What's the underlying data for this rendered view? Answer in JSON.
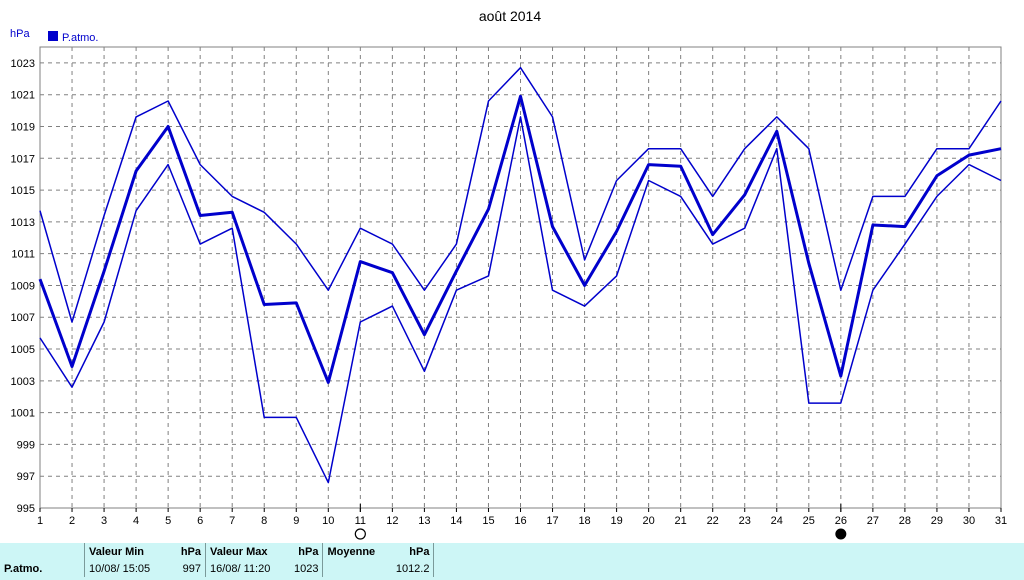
{
  "chart_data": {
    "type": "line",
    "title": "août 2014",
    "ylabel": "hPa",
    "xlabel": "",
    "x": [
      1,
      2,
      3,
      4,
      5,
      6,
      7,
      8,
      9,
      10,
      11,
      12,
      13,
      14,
      15,
      16,
      17,
      18,
      19,
      20,
      21,
      22,
      23,
      24,
      25,
      26,
      27,
      28,
      29,
      30,
      31
    ],
    "ylim": [
      995,
      1024
    ],
    "yticks": [
      995,
      997,
      999,
      1001,
      1003,
      1005,
      1007,
      1009,
      1011,
      1013,
      1015,
      1017,
      1019,
      1021,
      1023
    ],
    "grid": true,
    "legend": "top-left",
    "series": [
      {
        "name": "P.atmo.",
        "role": "mean",
        "values": [
          1009.4,
          1003.9,
          1009.9,
          1016.2,
          1019.0,
          1013.4,
          1013.6,
          1007.8,
          1007.9,
          1002.9,
          1010.5,
          1009.8,
          1005.9,
          1009.9,
          1013.8,
          1020.9,
          1012.7,
          1009.0,
          1012.4,
          1016.6,
          1016.5,
          1012.2,
          1014.7,
          1018.7,
          1010.4,
          1003.3,
          1012.8,
          1012.7,
          1015.9,
          1017.2,
          1017.6
        ]
      },
      {
        "role": "max",
        "values": [
          1013.7,
          1006.7,
          1013.4,
          1019.6,
          1020.6,
          1016.6,
          1014.6,
          1013.6,
          1011.6,
          1008.7,
          1012.6,
          1011.6,
          1008.7,
          1011.6,
          1020.6,
          1022.7,
          1019.6,
          1010.6,
          1015.6,
          1017.6,
          1017.6,
          1014.6,
          1017.6,
          1019.6,
          1017.6,
          1008.7,
          1014.6,
          1014.6,
          1017.6,
          1017.6,
          1020.6
        ]
      },
      {
        "role": "min",
        "values": [
          1005.7,
          1002.6,
          1006.7,
          1013.7,
          1016.6,
          1011.6,
          1012.6,
          1000.7,
          1000.7,
          996.6,
          1006.7,
          1007.7,
          1003.6,
          1008.7,
          1009.6,
          1019.6,
          1008.7,
          1007.7,
          1009.6,
          1015.6,
          1014.6,
          1011.6,
          1012.6,
          1017.6,
          1001.6,
          1001.6,
          1008.7,
          1011.6,
          1014.6,
          1016.6,
          1015.6
        ]
      }
    ],
    "moon_phases": [
      {
        "day": 11,
        "phase": "full-moon"
      },
      {
        "day": 26,
        "phase": "new-moon"
      }
    ],
    "colors": {
      "line": "#0000cc",
      "grid": "#808080",
      "text": "#000000"
    }
  },
  "stats": {
    "row_label": "P.atmo.",
    "min_header": "Valeur Min",
    "min_unit": "hPa",
    "min_date": "10/08/  15:05",
    "min_value": "997",
    "max_header": "Valeur Max",
    "max_unit": "hPa",
    "max_date": "16/08/  11:20",
    "max_value": "1023",
    "mean_header": "Moyenne",
    "mean_unit": "hPa",
    "mean_value": "1012.2"
  }
}
